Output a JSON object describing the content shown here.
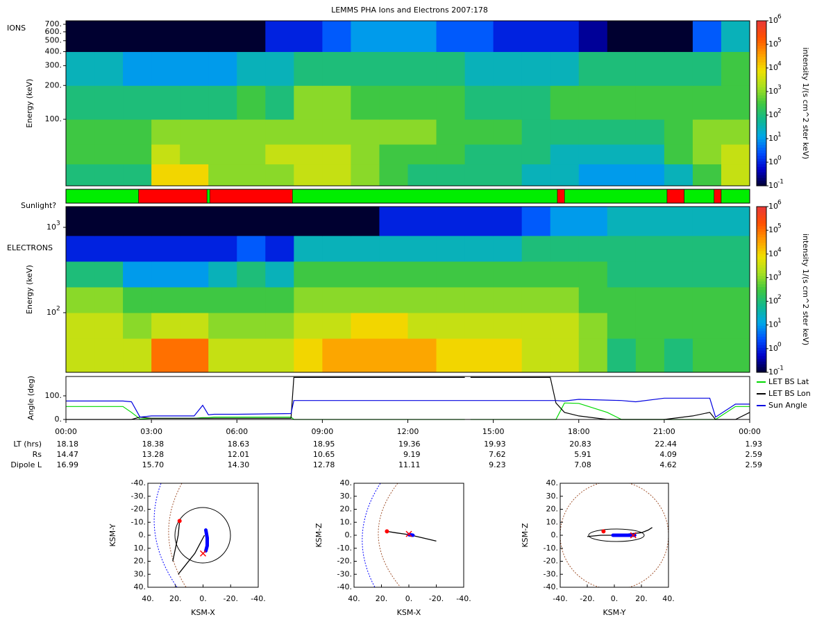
{
  "title": "LEMMS PHA Ions and Electrons  2007:178",
  "chart_data": [
    {
      "type": "heatmap",
      "label": "IONS",
      "ylabel": "Energy (keV)",
      "zlabel": "intensity 1/(s cm^2 ster keV)",
      "log_y": true,
      "log_z": true,
      "xlim": [
        0,
        24
      ],
      "ylim": [
        25.6,
        752
      ],
      "yticks": [
        {
          "value": 100,
          "label": "100."
        },
        {
          "value": 200,
          "label": "200."
        },
        {
          "value": 300,
          "label": "300."
        },
        {
          "value": 400,
          "label": "400."
        },
        {
          "value": 500,
          "label": "500."
        },
        {
          "value": 600,
          "label": "600."
        },
        {
          "value": 700,
          "label": "700."
        }
      ],
      "zlim": [
        0.1,
        1000000
      ],
      "zticks": [
        {
          "value": 0.1,
          "label": "10",
          "exponent": "-1"
        },
        {
          "value": 1,
          "label": "10",
          "exponent": "0"
        },
        {
          "value": 10,
          "label": "10",
          "exponent": "1"
        },
        {
          "value": 100,
          "label": "10",
          "exponent": "2"
        },
        {
          "value": 1000,
          "label": "10",
          "exponent": "3"
        },
        {
          "value": 10000,
          "label": "10",
          "exponent": "4"
        },
        {
          "value": 100000,
          "label": "10",
          "exponent": "5"
        },
        {
          "value": 1000000,
          "label": "10",
          "exponent": "6"
        }
      ],
      "colormap": [
        "#000030",
        "#0000c8",
        "#0050ff",
        "#00a8e8",
        "#10b890",
        "#40c840",
        "#a8e020",
        "#f0e000",
        "#ff9a00",
        "#ff5000",
        "#e83838"
      ],
      "xbins": [
        0,
        1,
        2,
        3,
        4,
        5,
        6,
        7,
        8,
        9,
        10,
        11,
        12,
        13,
        14,
        15,
        16,
        17,
        18,
        19,
        20,
        21,
        22,
        23,
        24
      ],
      "ybins": [
        25.6,
        40,
        60,
        100,
        200,
        400,
        752
      ],
      "z": [
        [
          100,
          100,
          100,
          10000,
          10000,
          1000,
          1000,
          1000,
          3000,
          3000,
          1000,
          300,
          100,
          100,
          100,
          100,
          30,
          30,
          10,
          10,
          10,
          30,
          300,
          3000
        ],
        [
          300,
          300,
          300,
          3000,
          1000,
          1000,
          1000,
          3000,
          3000,
          3000,
          1000,
          300,
          300,
          300,
          100,
          100,
          100,
          30,
          30,
          30,
          30,
          300,
          1000,
          3000
        ],
        [
          300,
          300,
          300,
          1000,
          1000,
          1000,
          1000,
          1000,
          1000,
          1000,
          1000,
          1000,
          1000,
          300,
          300,
          300,
          100,
          100,
          100,
          100,
          100,
          300,
          1000,
          1000
        ],
        [
          100,
          100,
          100,
          100,
          100,
          100,
          300,
          100,
          1000,
          1000,
          300,
          300,
          300,
          300,
          100,
          100,
          100,
          300,
          300,
          300,
          300,
          300,
          300,
          300
        ],
        [
          30,
          30,
          10,
          10,
          10,
          10,
          30,
          30,
          100,
          100,
          100,
          100,
          100,
          100,
          30,
          30,
          30,
          30,
          100,
          100,
          100,
          100,
          100,
          300
        ],
        [
          0.1,
          0.1,
          0.1,
          0.1,
          0.1,
          0.1,
          0.1,
          1,
          1,
          3,
          10,
          10,
          10,
          3,
          3,
          1,
          1,
          1,
          0.3,
          0.1,
          0.1,
          0.1,
          3,
          30
        ]
      ]
    },
    {
      "type": "timeline",
      "label": "Sunlight?",
      "xlim": [
        0,
        24
      ],
      "sunlit_color": "#00ee00",
      "shadow_color": "#ff0000",
      "segments": [
        {
          "start": 0,
          "end": 2.55,
          "sunlit": true
        },
        {
          "start": 2.55,
          "end": 4.95,
          "sunlit": false
        },
        {
          "start": 4.95,
          "end": 5.05,
          "sunlit": true
        },
        {
          "start": 5.05,
          "end": 7.95,
          "sunlit": false
        },
        {
          "start": 7.95,
          "end": 17.25,
          "sunlit": true
        },
        {
          "start": 17.25,
          "end": 17.5,
          "sunlit": false
        },
        {
          "start": 17.5,
          "end": 21.1,
          "sunlit": true
        },
        {
          "start": 21.1,
          "end": 21.7,
          "sunlit": false
        },
        {
          "start": 21.7,
          "end": 22.75,
          "sunlit": true
        },
        {
          "start": 22.75,
          "end": 23.0,
          "sunlit": false
        },
        {
          "start": 23.0,
          "end": 24,
          "sunlit": true
        }
      ]
    },
    {
      "type": "heatmap",
      "label": "ELECTRONS",
      "ylabel": "Energy (keV)",
      "zlabel": "intensity 1/(s cm^2 ster keV)",
      "log_y": true,
      "log_z": true,
      "xlim": [
        0,
        24
      ],
      "ylim": [
        20,
        1750
      ],
      "yticks": [
        {
          "value": 100,
          "label": "10",
          "exponent": "2"
        },
        {
          "value": 1000,
          "label": "10",
          "exponent": "3"
        }
      ],
      "zlim": [
        0.1,
        1000000
      ],
      "zticks": [
        {
          "value": 0.1,
          "label": "10",
          "exponent": "-1"
        },
        {
          "value": 1,
          "label": "10",
          "exponent": "0"
        },
        {
          "value": 10,
          "label": "10",
          "exponent": "1"
        },
        {
          "value": 100,
          "label": "10",
          "exponent": "2"
        },
        {
          "value": 1000,
          "label": "10",
          "exponent": "3"
        },
        {
          "value": 10000,
          "label": "10",
          "exponent": "4"
        },
        {
          "value": 100000,
          "label": "10",
          "exponent": "5"
        },
        {
          "value": 1000000,
          "label": "10",
          "exponent": "6"
        }
      ],
      "colormap": [
        "#000030",
        "#0000c8",
        "#0050ff",
        "#00a8e8",
        "#10b890",
        "#40c840",
        "#a8e020",
        "#f0e000",
        "#ff9a00",
        "#ff5000",
        "#e83838"
      ],
      "xbins": [
        0,
        1,
        2,
        3,
        4,
        5,
        6,
        7,
        8,
        9,
        10,
        11,
        12,
        13,
        14,
        15,
        16,
        17,
        18,
        19,
        20,
        21,
        22,
        23,
        24
      ],
      "ybins": [
        20,
        50,
        100,
        200,
        400,
        800,
        1750
      ],
      "z": [
        [
          3000,
          3000,
          3000,
          100000,
          100000,
          3000,
          3000,
          3000,
          10000,
          30000,
          30000,
          30000,
          30000,
          10000,
          10000,
          10000,
          3000,
          3000,
          1000,
          100,
          300,
          100,
          300,
          300
        ],
        [
          3000,
          3000,
          1000,
          3000,
          3000,
          1000,
          1000,
          1000,
          3000,
          3000,
          10000,
          10000,
          3000,
          3000,
          3000,
          3000,
          3000,
          3000,
          1000,
          300,
          300,
          300,
          300,
          300
        ],
        [
          1000,
          1000,
          300,
          300,
          300,
          300,
          300,
          300,
          1000,
          1000,
          1000,
          1000,
          1000,
          1000,
          1000,
          1000,
          1000,
          1000,
          300,
          300,
          300,
          300,
          300,
          300
        ],
        [
          100,
          100,
          10,
          10,
          10,
          30,
          100,
          30,
          300,
          300,
          300,
          300,
          300,
          300,
          300,
          300,
          300,
          300,
          300,
          100,
          100,
          100,
          100,
          100
        ],
        [
          1,
          1,
          1,
          1,
          1,
          1,
          3,
          1,
          30,
          30,
          30,
          30,
          30,
          30,
          30,
          30,
          100,
          100,
          100,
          100,
          100,
          100,
          100,
          100
        ],
        [
          0.1,
          0.1,
          0.1,
          0.1,
          0.1,
          0.1,
          0.1,
          0.1,
          0.1,
          0.1,
          0.1,
          1,
          1,
          1,
          1,
          1,
          3,
          10,
          10,
          30,
          30,
          30,
          30,
          30
        ]
      ]
    },
    {
      "type": "line",
      "ylabel": "Angle (deg)",
      "xlim": [
        0,
        24
      ],
      "ylim": [
        0,
        182
      ],
      "yticks": [
        {
          "value": 0,
          "label": "0."
        },
        {
          "value": 100,
          "label": "100."
        }
      ],
      "xticks": [
        {
          "value": 0,
          "label": "00:00"
        },
        {
          "value": 3,
          "label": "03:00"
        },
        {
          "value": 6,
          "label": "06:00"
        },
        {
          "value": 9,
          "label": "09:00"
        },
        {
          "value": 12,
          "label": "12:00"
        },
        {
          "value": 15,
          "label": "15:00"
        },
        {
          "value": 18,
          "label": "18:00"
        },
        {
          "value": 21,
          "label": "21:00"
        },
        {
          "value": 24,
          "label": "00:00"
        }
      ],
      "x": [
        0,
        2,
        2.3,
        2.6,
        3,
        4.5,
        4.8,
        5.0,
        5.2,
        6,
        7.9,
        8.0,
        8.2,
        11,
        14,
        14.05,
        14.2,
        17,
        17.2,
        17.5,
        18,
        19,
        19.5,
        20,
        21,
        22,
        22.6,
        22.8,
        23.5,
        24
      ],
      "series": [
        {
          "name": "LET BS Lat",
          "color": "#00d800",
          "values": [
            55,
            55,
            30,
            2,
            5,
            5,
            8,
            8,
            10,
            10,
            10,
            0,
            0,
            0,
            0,
            null,
            0,
            0,
            0,
            70,
            68,
            30,
            0,
            0,
            0,
            0,
            0,
            0,
            55,
            55
          ]
        },
        {
          "name": "LET BS Lon",
          "color": "#000000",
          "values": [
            0,
            0,
            0,
            10,
            5,
            5,
            5,
            5,
            5,
            5,
            5,
            178,
            178,
            178,
            178,
            null,
            178,
            178,
            70,
            30,
            15,
            0,
            0,
            0,
            0,
            15,
            30,
            0,
            0,
            30
          ]
        },
        {
          "name": "Sun Angle",
          "color": "#0000e0",
          "values": [
            78,
            78,
            75,
            10,
            15,
            15,
            60,
            20,
            22,
            22,
            25,
            80,
            80,
            80,
            80,
            80,
            80,
            80,
            80,
            78,
            85,
            82,
            80,
            75,
            90,
            90,
            90,
            10,
            65,
            65
          ]
        }
      ],
      "ephemeris": [
        {
          "label": "LT (hrs)",
          "values": [
            "18.18",
            "18.38",
            "18.63",
            "18.95",
            "19.36",
            "19.93",
            "20.83",
            "22.44",
            "1.93"
          ]
        },
        {
          "label": "Rs",
          "values": [
            "14.47",
            "13.28",
            "12.01",
            "10.65",
            "9.19",
            "7.62",
            "5.91",
            "4.09",
            "2.59"
          ]
        },
        {
          "label": "Dipole L",
          "values": [
            "16.99",
            "15.70",
            "14.30",
            "12.78",
            "11.11",
            "9.23",
            "7.08",
            "4.62",
            "2.59"
          ]
        }
      ]
    },
    {
      "type": "trajectory",
      "xlabel": "KSM-X",
      "ylabel": "KSM-Y",
      "xlim": [
        40,
        -40
      ],
      "ylim": [
        40,
        -40
      ],
      "xticks": [
        {
          "value": 40,
          "label": "40."
        },
        {
          "value": 20,
          "label": "20."
        },
        {
          "value": 0,
          "label": "0."
        },
        {
          "value": -20,
          "label": "-20."
        },
        {
          "value": -40,
          "label": "-40."
        }
      ],
      "yticks": [
        {
          "value": -40,
          "label": "-40."
        },
        {
          "value": -30,
          "label": "-30."
        },
        {
          "value": -20,
          "label": "-20."
        },
        {
          "value": -10,
          "label": "-10."
        },
        {
          "value": 0,
          "label": "0."
        },
        {
          "value": 10,
          "label": "10."
        },
        {
          "value": 20,
          "label": "20."
        },
        {
          "value": 30,
          "label": "30."
        },
        {
          "value": 40,
          "label": "40."
        }
      ],
      "path": {
        "x": [
          17,
          18,
          20,
          22,
          null,
          18,
          12,
          6,
          2,
          -1
        ],
        "y": [
          -11,
          0,
          10,
          20,
          null,
          30,
          22,
          14,
          6,
          0
        ]
      },
      "segment": {
        "color": "#0000ff",
        "x": [
          -2,
          -3,
          -3,
          -2
        ],
        "y": [
          -4,
          2,
          8,
          12
        ]
      },
      "start": {
        "x": 17,
        "y": -11
      },
      "end": {
        "x": 0,
        "y": 14
      }
    },
    {
      "type": "trajectory",
      "xlabel": "KSM-X",
      "ylabel": "KSM-Z",
      "xlim": [
        40,
        -40
      ],
      "ylim": [
        -40,
        40
      ],
      "xticks": [
        {
          "value": 40,
          "label": "40."
        },
        {
          "value": 20,
          "label": "20."
        },
        {
          "value": 0,
          "label": "0."
        },
        {
          "value": -20,
          "label": "-20."
        },
        {
          "value": -40,
          "label": "-40."
        }
      ],
      "yticks": [
        {
          "value": 40,
          "label": "40."
        },
        {
          "value": 30,
          "label": "30."
        },
        {
          "value": 20,
          "label": "20."
        },
        {
          "value": 10,
          "label": "10."
        },
        {
          "value": 0,
          "label": "0."
        },
        {
          "value": -10,
          "label": "-10."
        },
        {
          "value": -20,
          "label": "-20."
        },
        {
          "value": -30,
          "label": "-30."
        },
        {
          "value": -40,
          "label": "-40."
        }
      ],
      "path": {
        "x": [
          16,
          10,
          0,
          -10,
          -20
        ],
        "y": [
          3,
          2,
          0.5,
          -2,
          -4.5
        ]
      },
      "segment": {
        "color": "#0000ff",
        "x": [
          0,
          -3
        ],
        "y": [
          0.5,
          0
        ]
      },
      "start": {
        "x": 16,
        "y": 3
      },
      "end": {
        "x": 0,
        "y": 1
      }
    },
    {
      "type": "trajectory",
      "xlabel": "KSM-Y",
      "ylabel": "KSM-Z",
      "xlim": [
        -40,
        40
      ],
      "ylim": [
        -40,
        40
      ],
      "xticks": [
        {
          "value": -40,
          "label": "-40."
        },
        {
          "value": -20,
          "label": "-20."
        },
        {
          "value": 0,
          "label": "0."
        },
        {
          "value": 20,
          "label": "20."
        },
        {
          "value": 40,
          "label": "40."
        }
      ],
      "yticks": [
        {
          "value": 40,
          "label": "40."
        },
        {
          "value": 30,
          "label": "30."
        },
        {
          "value": 20,
          "label": "20."
        },
        {
          "value": 10,
          "label": "10."
        },
        {
          "value": 0,
          "label": "0."
        },
        {
          "value": -10,
          "label": "-10."
        },
        {
          "value": -20,
          "label": "-20."
        },
        {
          "value": -30,
          "label": "-30."
        },
        {
          "value": -40,
          "label": "-40."
        }
      ],
      "path": {
        "x": [
          -20,
          -10,
          0,
          10,
          20,
          25,
          28
        ],
        "y": [
          -1,
          0,
          0,
          1,
          2,
          4,
          6
        ]
      },
      "segment": {
        "color": "#0000ff",
        "x": [
          -1,
          15
        ],
        "y": [
          0,
          0
        ]
      },
      "start": {
        "x": -8,
        "y": 3
      },
      "end": {
        "x": 14,
        "y": 0
      }
    }
  ]
}
